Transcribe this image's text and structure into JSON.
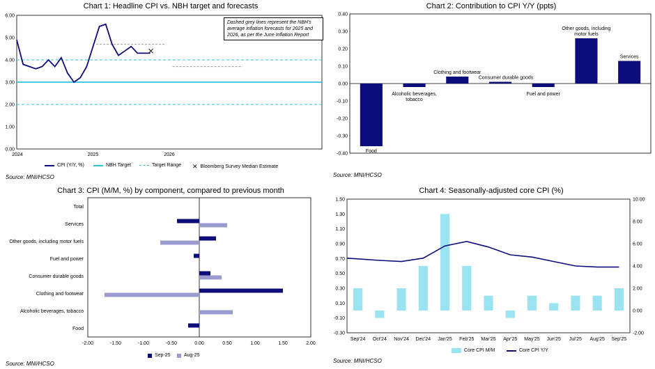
{
  "chart_data": [
    {
      "id": "chart1",
      "type": "line",
      "title": "Chart 1: Headline CPI vs. NBH target and forecasts",
      "x_labels": [
        "2024",
        "2025",
        "2026"
      ],
      "ylim": [
        0,
        6
      ],
      "y_ticks": [
        "0.00",
        "1.00",
        "2.00",
        "3.00",
        "4.00",
        "5.00",
        "6.00"
      ],
      "series": [
        {
          "name": "CPI (Y/Y, %)",
          "color": "#0c0c7a",
          "values": [
            4.9,
            3.8,
            3.7,
            3.6,
            3.7,
            4.0,
            3.7,
            4.1,
            3.4,
            3.0,
            3.2,
            3.7,
            4.6,
            5.5,
            5.6,
            4.7,
            4.2,
            4.4,
            4.6,
            4.3,
            4.3,
            4.3
          ]
        },
        {
          "name": "NBH Target",
          "color": "#2ec3e0",
          "value": 3.0
        },
        {
          "name": "Target Range",
          "color": "#2ec3e0",
          "values": [
            2.0,
            4.0
          ]
        },
        {
          "name": "Bloomberg Survey Median Estimate",
          "value": 4.4
        },
        {
          "name": "NBH forecast 2025",
          "value": 4.7
        },
        {
          "name": "NBH forecast 2026",
          "value": 3.7
        }
      ],
      "legend": [
        "CPI (Y/Y, %)",
        "NBH Target",
        "Target Range",
        "Bloomberg Survey Median Estimate"
      ],
      "annotation": "Dashed grey lines represent the NBH's average inflation forecasts for 2025 and 2026, as per the June Inflation Report",
      "source": "Source: MNI/HCSO"
    },
    {
      "id": "chart2",
      "type": "bar",
      "title": "Chart 2: Contribution to CPI Y/Y (ppts)",
      "categories": [
        "Food",
        "Alcoholic beverages, tobacco",
        "Clothing and footwear",
        "Consumer durable goods",
        "Fuel and power",
        "Other goods, including motor fuels",
        "Services"
      ],
      "values": [
        -0.36,
        -0.02,
        0.04,
        0.01,
        -0.02,
        0.26,
        0.13
      ],
      "ylim": [
        -0.4,
        0.4
      ],
      "y_ticks": [
        "-0.40",
        "-0.30",
        "-0.20",
        "-0.10",
        "0.00",
        "0.10",
        "0.20",
        "0.30",
        "0.40"
      ],
      "color": "#0c0c7a",
      "source": "Source: MNI/HCSO"
    },
    {
      "id": "chart3",
      "type": "bar",
      "orientation": "horizontal",
      "title": "Chart 3: CPI (M/M, %) by component, compared to previous month",
      "categories": [
        "Total",
        "Services",
        "Other goods, including motor fuels",
        "Fuel and power",
        "Consumer durable goods",
        "Clothing and footwear",
        "Alcoholic beverages, tobacco",
        "Food"
      ],
      "series": [
        {
          "name": "Sep-25",
          "color": "#0c0c7a",
          "values": [
            0.0,
            -0.4,
            0.3,
            -0.1,
            0.2,
            1.5,
            0.0,
            -0.2
          ]
        },
        {
          "name": "Aug-25",
          "color": "#9b9bd0",
          "values": [
            0.0,
            0.5,
            -0.7,
            0.0,
            0.4,
            -1.7,
            0.6,
            0.0
          ]
        }
      ],
      "xlim": [
        -2,
        2
      ],
      "x_ticks": [
        "-2.00",
        "-1.50",
        "-1.00",
        "-0.50",
        "0.00",
        "0.50",
        "1.00",
        "1.50",
        "2.00"
      ],
      "source": "Source: MNI/HCSO"
    },
    {
      "id": "chart4",
      "type": "bar",
      "title": "Chart 4: Seasonally-adjusted core CPI (%)",
      "categories": [
        "Sep'24",
        "Oct'24",
        "Nov'24",
        "Dec'24",
        "Jan'25",
        "Feb'25",
        "Mar'25",
        "Apr'25",
        "May'25",
        "Jun'25",
        "Jul'25",
        "Aug'25",
        "Sep'25"
      ],
      "series": [
        {
          "name": "Core CPI M/M",
          "type": "bar",
          "axis": "left",
          "color": "#9ae3f0",
          "values": [
            0.3,
            -0.1,
            0.3,
            0.6,
            1.3,
            0.6,
            0.2,
            -0.1,
            0.2,
            0.1,
            0.2,
            0.2,
            0.3
          ]
        },
        {
          "name": "Core CPI Y/Y",
          "type": "line",
          "axis": "right",
          "color": "#0c0c7a",
          "values": [
            4.7,
            4.5,
            4.4,
            4.7,
            5.8,
            6.2,
            5.7,
            5.0,
            4.8,
            4.4,
            4.0,
            3.9,
            3.9
          ]
        }
      ],
      "ylim_left": [
        -0.3,
        1.5
      ],
      "y_ticks_left": [
        "-0.30",
        "-0.10",
        "0.10",
        "0.30",
        "0.50",
        "0.70",
        "0.90",
        "1.10",
        "1.30",
        "1.50"
      ],
      "ylim_right": [
        -2,
        10
      ],
      "y_ticks_right": [
        "-2.00",
        "0.00",
        "2.00",
        "4.00",
        "6.00",
        "8.00",
        "10.00"
      ],
      "source": "Source: MNI/HCSO"
    }
  ]
}
